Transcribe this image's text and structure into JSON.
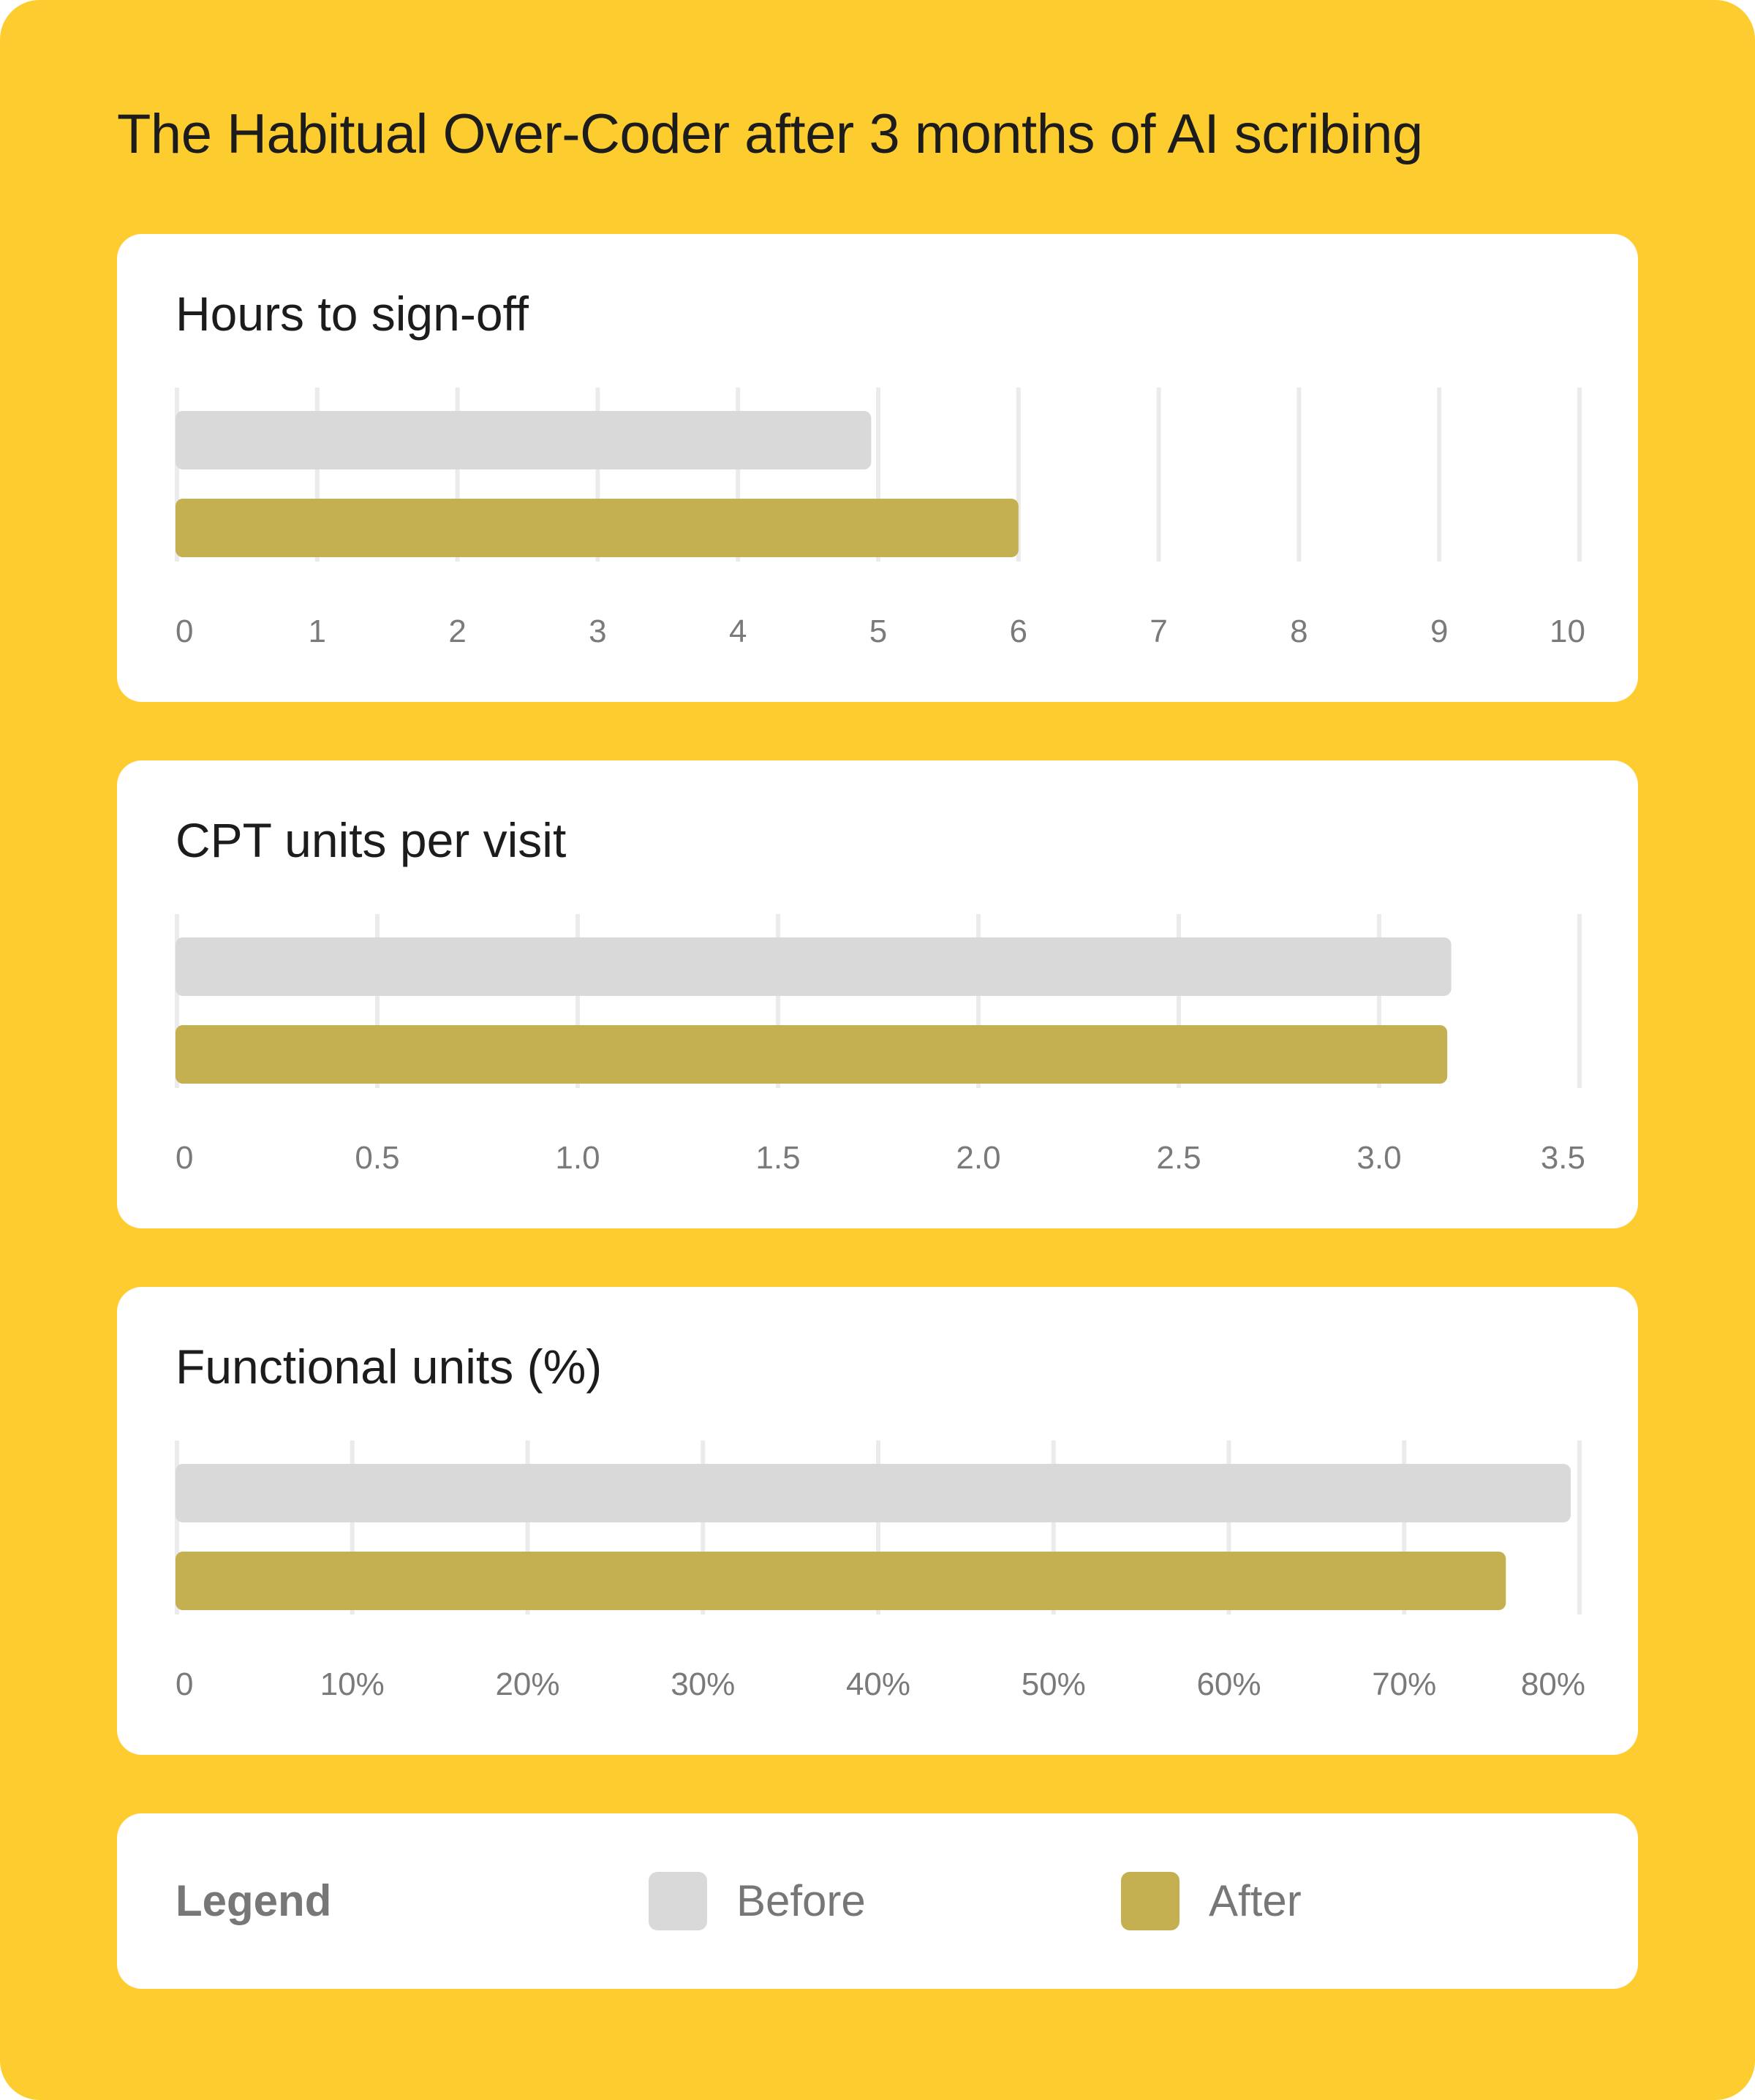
{
  "title": "The Habitual Over-Coder after 3 months of AI scribing",
  "colors": {
    "background": "#FDCD2F",
    "before": "#D9D9D9",
    "after": "#C4AF51",
    "grid": "#EBEBEB",
    "tick": "#7A7A7A"
  },
  "legend": {
    "title": "Legend",
    "items": [
      {
        "label": "Before",
        "color": "#D9D9D9"
      },
      {
        "label": "After",
        "color": "#C4AF51"
      }
    ]
  },
  "chart_data": [
    {
      "type": "bar",
      "orientation": "horizontal",
      "title": "Hours to sign-off",
      "xlim": [
        0,
        10
      ],
      "ticks": [
        0,
        1,
        2,
        3,
        4,
        5,
        6,
        7,
        8,
        9,
        10
      ],
      "tick_labels": [
        "0",
        "1",
        "2",
        "3",
        "4",
        "5",
        "6",
        "7",
        "8",
        "9",
        "10"
      ],
      "grid": true,
      "series": [
        {
          "name": "Before",
          "value": 4.95
        },
        {
          "name": "After",
          "value": 6.0
        }
      ]
    },
    {
      "type": "bar",
      "orientation": "horizontal",
      "title": "CPT units per visit",
      "xlim": [
        0,
        3.5
      ],
      "ticks": [
        0,
        0.5,
        1.0,
        1.5,
        2.0,
        2.5,
        3.0,
        3.5
      ],
      "tick_labels": [
        "0",
        "0.5",
        "1.0",
        "1.5",
        "2.0",
        "2.5",
        "3.0",
        "3.5"
      ],
      "grid": true,
      "series": [
        {
          "name": "Before",
          "value": 3.18
        },
        {
          "name": "After",
          "value": 3.17
        }
      ]
    },
    {
      "type": "bar",
      "orientation": "horizontal",
      "title": "Functional units (%)",
      "xlim": [
        0,
        80
      ],
      "ticks": [
        0,
        10,
        20,
        30,
        40,
        50,
        60,
        70,
        80
      ],
      "tick_labels": [
        "0",
        "10%",
        "20%",
        "30%",
        "40%",
        "50%",
        "60%",
        "70%",
        "80%"
      ],
      "grid": true,
      "series": [
        {
          "name": "Before",
          "value": 79.5
        },
        {
          "name": "After",
          "value": 75.8
        }
      ]
    }
  ]
}
